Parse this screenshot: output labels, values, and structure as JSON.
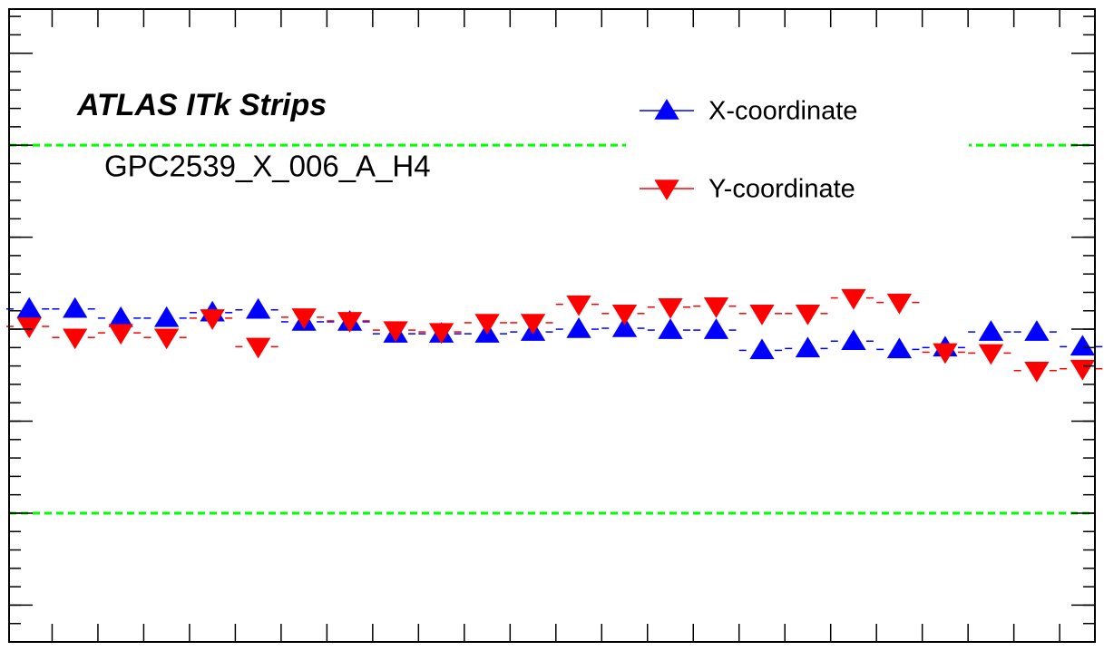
{
  "chart_data": {
    "type": "scatter",
    "title": "ATLAS ITk Strips",
    "subtitle": "GPC2539_X_006_A_H4",
    "x": [
      1,
      2,
      3,
      4,
      5,
      6,
      7,
      8,
      9,
      10,
      11,
      12,
      13,
      14,
      15,
      16,
      17,
      18,
      19,
      20,
      21,
      22,
      23,
      24
    ],
    "series": [
      {
        "name": "X-coordinate",
        "color": "#0000ff",
        "marker": "triangle-up",
        "values": [
          0.22,
          0.22,
          0.12,
          0.12,
          0.18,
          0.21,
          0.08,
          0.08,
          -0.05,
          -0.05,
          -0.05,
          -0.03,
          0,
          0.01,
          -0.01,
          -0.01,
          -0.23,
          -0.21,
          -0.13,
          -0.22,
          -0.2,
          -0.03,
          -0.03,
          -0.19
        ]
      },
      {
        "name": "Y-coordinate",
        "color": "#ff0000",
        "marker": "triangle-down",
        "values": [
          0.03,
          -0.09,
          -0.04,
          -0.09,
          0.12,
          -0.19,
          0.13,
          0.09,
          -0.01,
          -0.03,
          0.07,
          0.07,
          0.27,
          0.17,
          0.24,
          0.25,
          0.17,
          0.17,
          0.34,
          0.29,
          -0.25,
          -0.26,
          -0.45,
          -0.43
        ]
      }
    ],
    "xlim": [
      0.56,
      24.27
    ],
    "xticks": [
      1.5,
      2.5,
      3.5,
      4.5,
      5.5,
      6.5,
      7.5,
      8.5,
      9.5,
      10.5,
      11.5,
      12.5,
      13.5,
      14.5,
      15.5,
      16.5,
      17.5,
      18.5,
      19.5,
      20.5,
      21.5,
      22.5,
      23.5
    ],
    "ylim": [
      -3.4,
      3.48
    ],
    "yticks": [
      -3,
      -2,
      -1,
      0,
      1,
      2,
      3
    ],
    "reference_lines": [
      2,
      -2
    ],
    "reference_color": "#00ff00",
    "legend": "top-right"
  }
}
